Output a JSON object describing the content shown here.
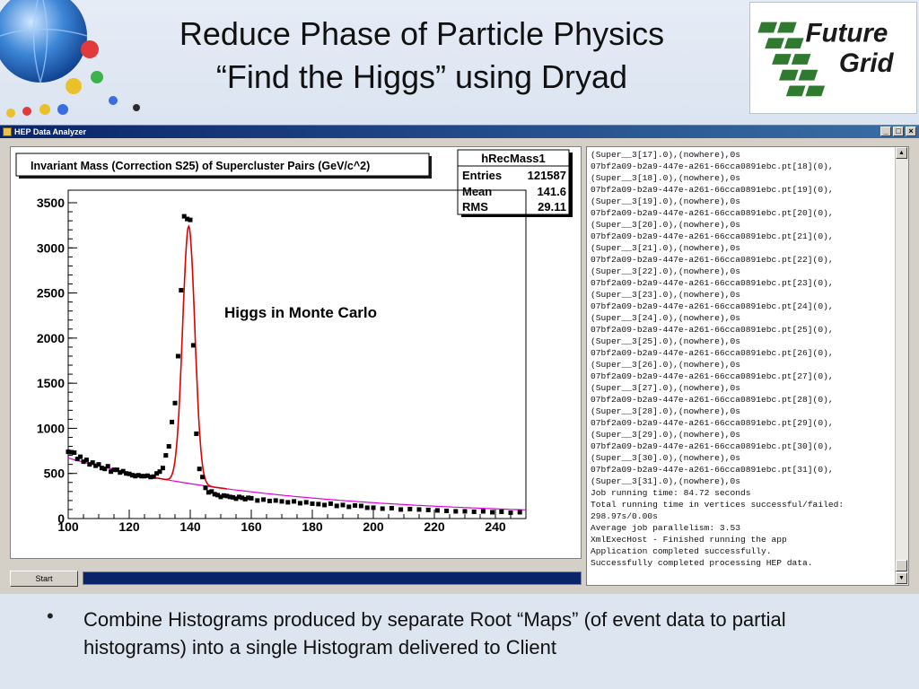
{
  "slide": {
    "title_line1": "Reduce Phase of Particle Physics",
    "title_line2": "“Find the Higgs” using Dryad",
    "logo_line1": "Future",
    "logo_line2": "Grid",
    "bullet": "Combine Histograms produced by separate Root “Maps” (of event data to partial histograms) into a single Histogram delivered to Client"
  },
  "window": {
    "title": "HEP Data Analyzer",
    "start_label": "Start",
    "btn_min": "_",
    "btn_max": "□",
    "btn_close": "×",
    "log_lines": [
      "(Super__3[17].0),(nowhere),0s",
      "07bf2a09-b2a9-447e-a261-66cca0891ebc.pt[18](0),",
      "(Super__3[18].0),(nowhere),0s",
      "07bf2a09-b2a9-447e-a261-66cca0891ebc.pt[19](0),",
      "(Super__3[19].0),(nowhere),0s",
      "07bf2a09-b2a9-447e-a261-66cca0891ebc.pt[20](0),",
      "(Super__3[20].0),(nowhere),0s",
      "07bf2a09-b2a9-447e-a261-66cca0891ebc.pt[21](0),",
      "(Super__3[21].0),(nowhere),0s",
      "07bf2a09-b2a9-447e-a261-66cca0891ebc.pt[22](0),",
      "(Super__3[22].0),(nowhere),0s",
      "07bf2a09-b2a9-447e-a261-66cca0891ebc.pt[23](0),",
      "(Super__3[23].0),(nowhere),0s",
      "07bf2a09-b2a9-447e-a261-66cca0891ebc.pt[24](0),",
      "(Super__3[24].0),(nowhere),0s",
      "07bf2a09-b2a9-447e-a261-66cca0891ebc.pt[25](0),",
      "(Super__3[25].0),(nowhere),0s",
      "07bf2a09-b2a9-447e-a261-66cca0891ebc.pt[26](0),",
      "(Super__3[26].0),(nowhere),0s",
      "07bf2a09-b2a9-447e-a261-66cca0891ebc.pt[27](0),",
      "(Super__3[27].0),(nowhere),0s",
      "07bf2a09-b2a9-447e-a261-66cca0891ebc.pt[28](0),",
      "(Super__3[28].0),(nowhere),0s",
      "07bf2a09-b2a9-447e-a261-66cca0891ebc.pt[29](0),",
      "(Super__3[29].0),(nowhere),0s",
      "07bf2a09-b2a9-447e-a261-66cca0891ebc.pt[30](0),",
      "(Super__3[30].0),(nowhere),0s",
      "07bf2a09-b2a9-447e-a261-66cca0891ebc.pt[31](0),",
      "(Super__3[31].0),(nowhere),0s",
      "Job running time: 84.72 seconds",
      "Total running time in vertices successful/failed:",
      "298.97s/0.00s",
      "Average job parallelism: 3.53",
      "XmlExecHost - Finished running the app",
      "Application completed successfully.",
      "Successfully completed processing HEP data."
    ]
  },
  "chart_data": {
    "type": "scatter",
    "title": "Invariant Mass (Correction S25) of Supercluster Pairs (GeV/c^2)",
    "annotation": "Higgs in Monte Carlo",
    "stats": {
      "name": "hRecMass1",
      "entries_label": "Entries",
      "entries": "121587",
      "mean_label": "Mean",
      "mean": "141.6",
      "rms_label": "RMS",
      "rms": "29.11"
    },
    "xlim": [
      100,
      250
    ],
    "ylim": [
      0,
      3500
    ],
    "x_ticks": [
      100,
      120,
      140,
      160,
      180,
      200,
      220,
      240
    ],
    "y_ticks": [
      0,
      500,
      1000,
      1500,
      2000,
      2500,
      3000,
      3500
    ],
    "grid": false,
    "colors": {
      "points": "#000000",
      "fit": "#dd0000",
      "background_fit": "#e000e0"
    },
    "series": [
      {
        "x": [
          100,
          101,
          102,
          103,
          104,
          105,
          106,
          107,
          108,
          109,
          110,
          111,
          112,
          113,
          114,
          115,
          116,
          117,
          118,
          119,
          120,
          121,
          122,
          123,
          124,
          125,
          126,
          127,
          128,
          129,
          130,
          131,
          132,
          133,
          134,
          135,
          136,
          137,
          138,
          139,
          140,
          141,
          142,
          143,
          144,
          145,
          146,
          147,
          148,
          149,
          150,
          151,
          152,
          153,
          154,
          155,
          156,
          157,
          158,
          159,
          160,
          162,
          164,
          166,
          168,
          170,
          172,
          174,
          176,
          178,
          180,
          182,
          184,
          186,
          188,
          190,
          192,
          194,
          196,
          198,
          200,
          203,
          206,
          209,
          212,
          215,
          218,
          221,
          224,
          227,
          230,
          233,
          236,
          239,
          242,
          245,
          248
        ],
        "y": [
          740,
          735,
          730,
          660,
          685,
          630,
          650,
          600,
          620,
          585,
          600,
          560,
          550,
          580,
          520,
          540,
          540,
          510,
          525,
          500,
          495,
          480,
          470,
          480,
          470,
          470,
          475,
          460,
          465,
          500,
          520,
          560,
          700,
          800,
          1070,
          1280,
          1800,
          2530,
          3350,
          3320,
          3310,
          1920,
          940,
          550,
          460,
          340,
          290,
          300,
          270,
          260,
          240,
          255,
          250,
          240,
          235,
          220,
          240,
          230,
          215,
          230,
          225,
          200,
          210,
          195,
          200,
          190,
          180,
          190,
          170,
          180,
          165,
          160,
          150,
          165,
          140,
          150,
          130,
          145,
          140,
          120,
          120,
          110,
          115,
          100,
          105,
          100,
          95,
          90,
          85,
          80,
          80,
          75,
          80,
          70,
          75,
          65,
          70
        ]
      }
    ]
  }
}
